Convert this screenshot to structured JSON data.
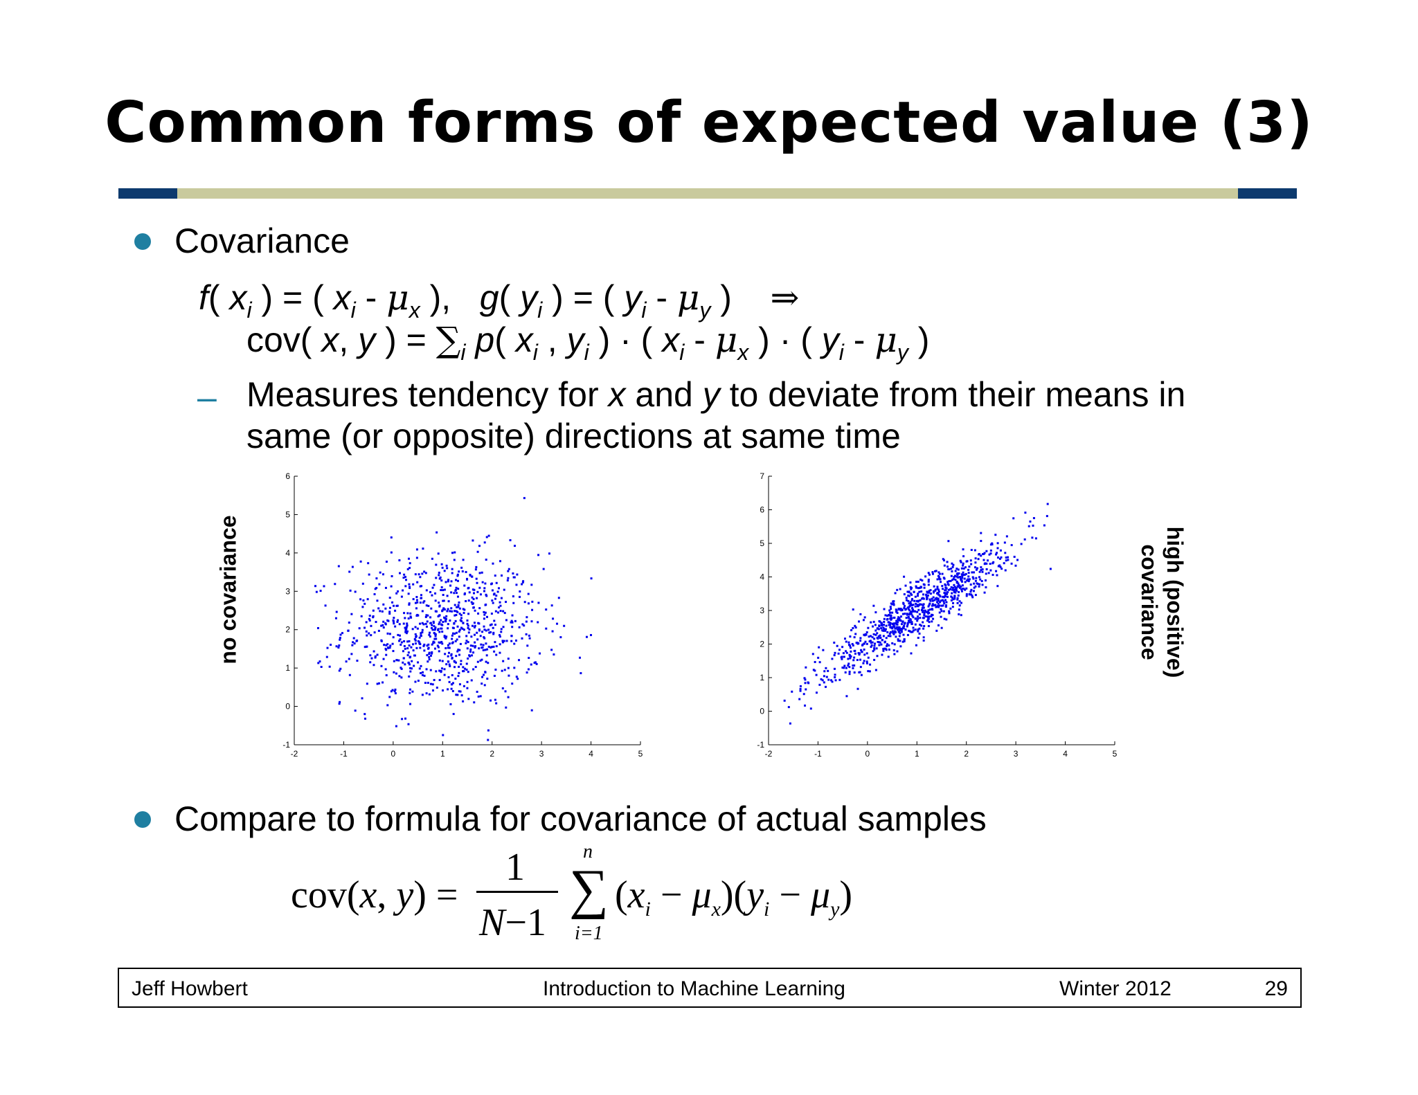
{
  "slide": {
    "title": "Common forms of expected value (3)",
    "bullet1": "Covariance",
    "formula_line1": {
      "f": "f",
      "x": "x",
      "i": "i",
      "mu": "μ",
      "sx": "x",
      "g": "g",
      "y": "y",
      "sy": "y",
      "implies": "⇒"
    },
    "formula_line2": {
      "cov": "cov(",
      "sum": "∑",
      "p": "p",
      "dot": "·"
    },
    "sub1_a": "Measures tendency for ",
    "sub1_x": "x",
    "sub1_and": " and ",
    "sub1_y": "y",
    "sub1_b": " to deviate from their means in",
    "sub1_line2": "same (or opposite) directions at same time",
    "left_plot_label": "no covariance",
    "right_plot_label_line1": "high (positive)",
    "right_plot_label_line2": "covariance",
    "bullet2": "Compare to formula for covariance of actual samples",
    "sample_formula": {
      "cov": "cov",
      "x": "x",
      "y": "y",
      "one": "1",
      "N": "N",
      "minus_one": "−1",
      "n": "n",
      "i_eq_1": "i=1",
      "sum": "∑",
      "mu": "μ",
      "sub_x": "x",
      "sub_y": "y",
      "sub_i": "i"
    }
  },
  "footer": {
    "author": "Jeff Howbert",
    "course": "Introduction to Machine Learning",
    "term": "Winter 2012",
    "page": "29"
  },
  "colors": {
    "accent_dark": "#0d3a6e",
    "accent_light": "#c9ca9d",
    "bullet": "#1f7fa1",
    "points": "#0000ee"
  },
  "chart_data": [
    {
      "type": "scatter",
      "title": "",
      "xlabel": "",
      "ylabel": "",
      "xlim": [
        -2,
        5
      ],
      "ylim": [
        -1,
        6
      ],
      "xticks": [
        "-2",
        "-1",
        "0",
        "1",
        "2",
        "3",
        "4",
        "5"
      ],
      "yticks": [
        "-1",
        "0",
        "1",
        "2",
        "3",
        "4",
        "5",
        "6"
      ],
      "distribution": {
        "mean_x": 1,
        "mean_y": 2,
        "sd_x": 1,
        "sd_y": 1,
        "correlation": 0,
        "n": 900
      },
      "grid": false
    },
    {
      "type": "scatter",
      "title": "",
      "xlabel": "",
      "ylabel": "",
      "xlim": [
        -2,
        5
      ],
      "ylim": [
        -1,
        7
      ],
      "xticks": [
        "-2",
        "-1",
        "0",
        "1",
        "2",
        "3",
        "4",
        "5"
      ],
      "yticks": [
        "-1",
        "0",
        "1",
        "2",
        "3",
        "4",
        "5",
        "6",
        "7"
      ],
      "distribution": {
        "mean_x": 1,
        "mean_y": 3,
        "sd_x": 1,
        "sd_y": 1.05,
        "correlation": 0.92,
        "n": 900
      },
      "grid": false
    }
  ]
}
